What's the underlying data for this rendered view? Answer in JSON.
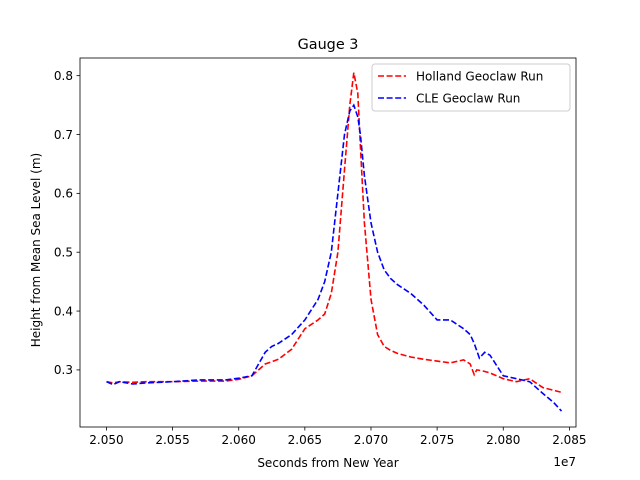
{
  "chart_data": {
    "type": "line",
    "title": "Gauge 3",
    "xlabel": "Seconds from New Year",
    "ylabel": "Height from Mean Sea Level (m)",
    "x_offset_label": "1e7",
    "x_scale": 10000000,
    "xlim": [
      20480000,
      20855000
    ],
    "ylim": [
      0.203,
      0.83
    ],
    "x_ticks": [
      20500000,
      20550000,
      20600000,
      20650000,
      20700000,
      20750000,
      20800000,
      20850000
    ],
    "x_tick_labels": [
      "2.050",
      "2.055",
      "2.060",
      "2.065",
      "2.070",
      "2.075",
      "2.080",
      "2.085"
    ],
    "y_ticks": [
      0.3,
      0.4,
      0.5,
      0.6,
      0.7,
      0.8
    ],
    "y_tick_labels": [
      "0.3",
      "0.4",
      "0.5",
      "0.6",
      "0.7",
      "0.8"
    ],
    "grid": false,
    "legend_position": "top-right",
    "series": [
      {
        "name": "Holland Geoclaw Run",
        "color": "#ff0000",
        "dash": "dashed",
        "x": [
          20500000,
          20505000,
          20510000,
          20520000,
          20530000,
          20550000,
          20570000,
          20590000,
          20600000,
          20610000,
          20620000,
          20630000,
          20640000,
          20650000,
          20660000,
          20665000,
          20670000,
          20675000,
          20680000,
          20684000,
          20687000,
          20690000,
          20692000,
          20695000,
          20700000,
          20705000,
          20710000,
          20715000,
          20720000,
          20730000,
          20740000,
          20750000,
          20760000,
          20770000,
          20775000,
          20778000,
          20780000,
          20785000,
          20790000,
          20800000,
          20810000,
          20820000,
          20830000,
          20844000
        ],
        "y": [
          0.28,
          0.278,
          0.28,
          0.279,
          0.28,
          0.28,
          0.281,
          0.281,
          0.284,
          0.29,
          0.31,
          0.318,
          0.335,
          0.37,
          0.385,
          0.395,
          0.43,
          0.5,
          0.64,
          0.75,
          0.805,
          0.77,
          0.68,
          0.55,
          0.42,
          0.36,
          0.34,
          0.333,
          0.328,
          0.322,
          0.318,
          0.315,
          0.312,
          0.317,
          0.31,
          0.292,
          0.3,
          0.298,
          0.295,
          0.285,
          0.28,
          0.285,
          0.27,
          0.262
        ]
      },
      {
        "name": "CLE Geoclaw Run",
        "color": "#0000ff",
        "dash": "dashed",
        "x": [
          20500000,
          20505000,
          20510000,
          20520000,
          20530000,
          20550000,
          20570000,
          20590000,
          20600000,
          20610000,
          20615000,
          20620000,
          20625000,
          20630000,
          20640000,
          20650000,
          20660000,
          20665000,
          20670000,
          20675000,
          20680000,
          20684000,
          20687000,
          20690000,
          20692000,
          20695000,
          20700000,
          20705000,
          20710000,
          20715000,
          20720000,
          20730000,
          20740000,
          20750000,
          20760000,
          20770000,
          20775000,
          20778000,
          20782000,
          20786000,
          20790000,
          20800000,
          20810000,
          20820000,
          20830000,
          20838000,
          20844000
        ],
        "y": [
          0.28,
          0.275,
          0.28,
          0.276,
          0.278,
          0.28,
          0.283,
          0.283,
          0.286,
          0.29,
          0.31,
          0.33,
          0.34,
          0.345,
          0.36,
          0.385,
          0.42,
          0.45,
          0.5,
          0.6,
          0.7,
          0.74,
          0.75,
          0.73,
          0.7,
          0.63,
          0.55,
          0.5,
          0.47,
          0.455,
          0.445,
          0.43,
          0.41,
          0.385,
          0.385,
          0.37,
          0.36,
          0.345,
          0.32,
          0.33,
          0.325,
          0.29,
          0.285,
          0.28,
          0.26,
          0.245,
          0.23
        ]
      }
    ]
  }
}
